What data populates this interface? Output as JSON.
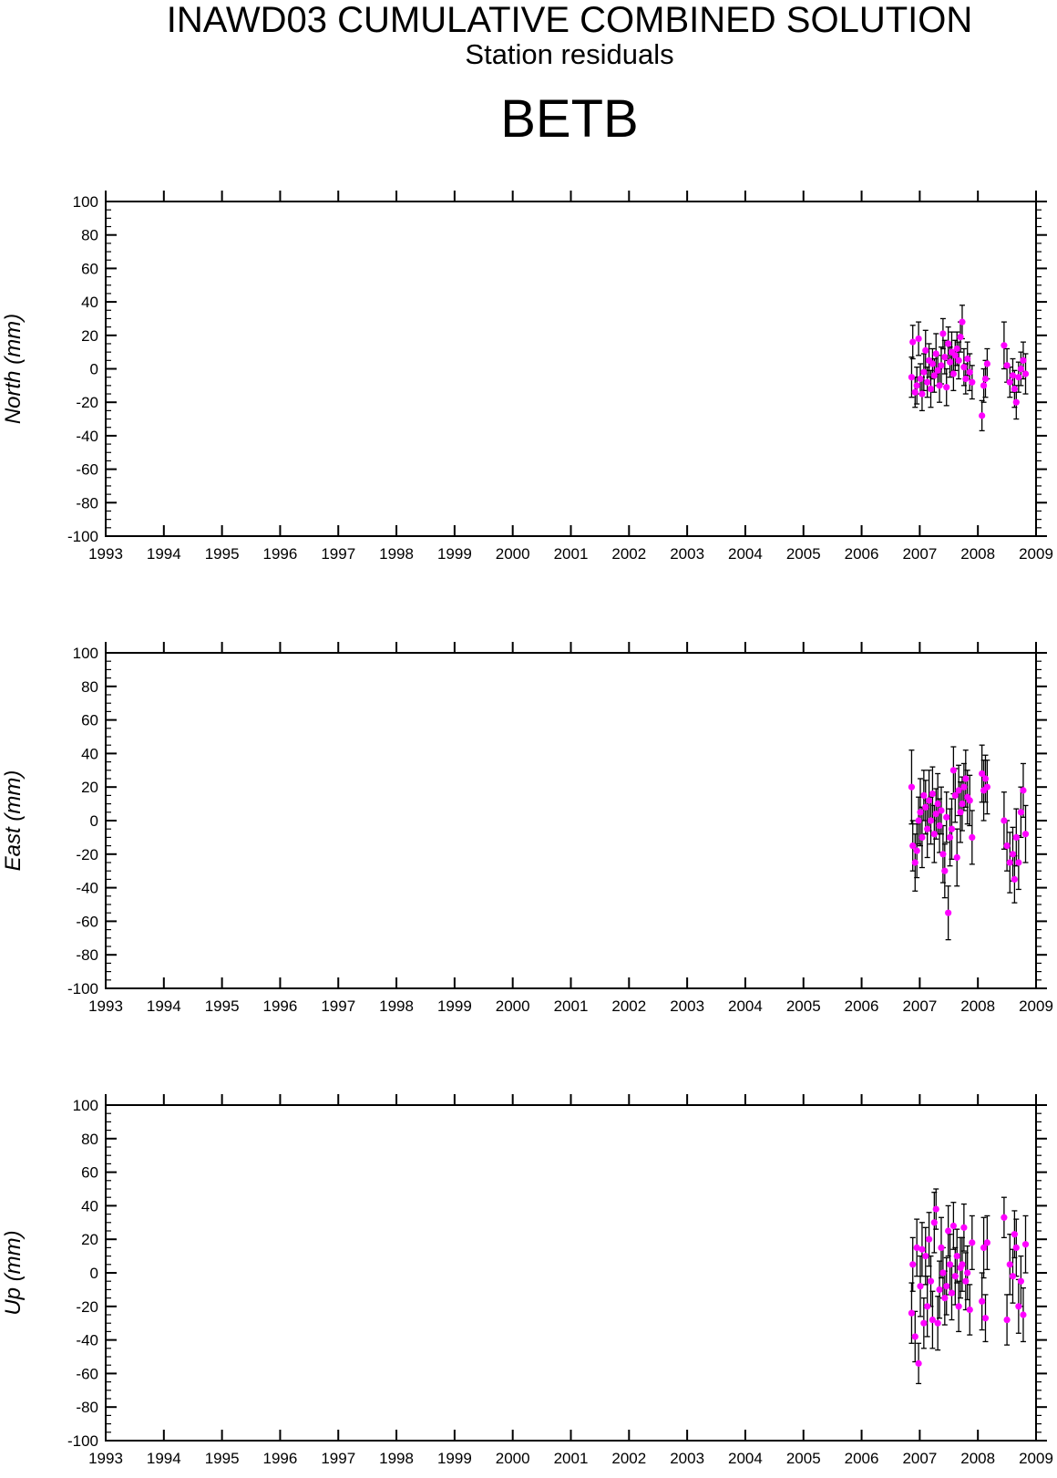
{
  "header": {
    "title": "INAWD03 CUMULATIVE COMBINED SOLUTION",
    "subtitle": "Station residuals",
    "station": "BETB"
  },
  "colors": {
    "marker": "#ff00ff",
    "errorbar": "#000000",
    "axis": "#000000"
  },
  "chart_data": [
    {
      "type": "scatter",
      "ylabel": "North (mm)",
      "xlim": [
        1993,
        2009
      ],
      "ylim": [
        -100,
        100
      ],
      "x_ticks": [
        1993,
        1994,
        1995,
        1996,
        1997,
        1998,
        1999,
        2000,
        2001,
        2002,
        2003,
        2004,
        2005,
        2006,
        2007,
        2008,
        2009
      ],
      "y_ticks": [
        -100,
        -80,
        -60,
        -40,
        -20,
        0,
        20,
        40,
        60,
        80,
        100
      ],
      "grid": false,
      "series": [
        {
          "x": [
            2006.86,
            2006.88,
            2006.92,
            2006.95,
            2006.98,
            2007.01,
            2007.04,
            2007.07,
            2007.1,
            2007.13,
            2007.16,
            2007.19,
            2007.22,
            2007.25,
            2007.28,
            2007.31,
            2007.34,
            2007.37,
            2007.4,
            2007.43,
            2007.46,
            2007.49,
            2007.52,
            2007.55,
            2007.58,
            2007.61,
            2007.64,
            2007.67,
            2007.7,
            2007.73,
            2007.76,
            2007.79,
            2007.82,
            2007.86,
            2007.9,
            2008.07,
            2008.1,
            2008.13,
            2008.16,
            2008.45,
            2008.5,
            2008.55,
            2008.6,
            2008.63,
            2008.66,
            2008.7,
            2008.74,
            2008.78,
            2008.82
          ],
          "y": [
            -5,
            16,
            -14,
            -10,
            18,
            -6,
            -15,
            -2,
            11,
            -8,
            5,
            -12,
            3,
            -4,
            9,
            -1,
            -10,
            2,
            21,
            7,
            -11,
            15,
            4,
            10,
            -3,
            8,
            12,
            5,
            19,
            28,
            1,
            -6,
            6,
            -2,
            -8,
            -28,
            -10,
            -6,
            3,
            14,
            2,
            -8,
            -4,
            -12,
            -20,
            -5,
            0,
            5,
            -3
          ],
          "err": [
            12,
            10,
            9,
            11,
            10,
            9,
            10,
            11,
            12,
            9,
            10,
            11,
            9,
            10,
            12,
            9,
            10,
            11,
            9,
            10,
            11,
            10,
            9,
            12,
            10,
            9,
            10,
            11,
            9,
            10,
            11,
            9,
            10,
            11,
            10,
            9,
            10,
            11,
            9,
            14,
            10,
            9,
            10,
            11,
            10,
            9,
            10,
            11,
            12
          ]
        }
      ]
    },
    {
      "type": "scatter",
      "ylabel": "East (mm)",
      "xlim": [
        1993,
        2009
      ],
      "ylim": [
        -100,
        100
      ],
      "x_ticks": [
        1993,
        1994,
        1995,
        1996,
        1997,
        1998,
        1999,
        2000,
        2001,
        2002,
        2003,
        2004,
        2005,
        2006,
        2007,
        2008,
        2009
      ],
      "y_ticks": [
        -100,
        -80,
        -60,
        -40,
        -20,
        0,
        20,
        40,
        60,
        80,
        100
      ],
      "grid": false,
      "series": [
        {
          "x": [
            2006.86,
            2006.88,
            2006.92,
            2006.95,
            2006.98,
            2007.01,
            2007.04,
            2007.07,
            2007.1,
            2007.13,
            2007.16,
            2007.19,
            2007.22,
            2007.25,
            2007.28,
            2007.31,
            2007.34,
            2007.37,
            2007.4,
            2007.43,
            2007.46,
            2007.49,
            2007.52,
            2007.55,
            2007.58,
            2007.61,
            2007.64,
            2007.67,
            2007.7,
            2007.73,
            2007.76,
            2007.79,
            2007.82,
            2007.86,
            2007.9,
            2008.07,
            2008.1,
            2008.13,
            2008.16,
            2008.45,
            2008.5,
            2008.55,
            2008.6,
            2008.63,
            2008.66,
            2008.7,
            2008.74,
            2008.78,
            2008.82
          ],
          "y": [
            20,
            -15,
            -25,
            -18,
            0,
            5,
            -10,
            15,
            8,
            -5,
            12,
            0,
            16,
            -8,
            4,
            10,
            -3,
            6,
            -20,
            -30,
            2,
            -55,
            -10,
            -5,
            30,
            15,
            -22,
            18,
            5,
            10,
            20,
            25,
            14,
            12,
            -10,
            28,
            18,
            25,
            20,
            0,
            -15,
            -25,
            -20,
            -35,
            -10,
            -25,
            5,
            18,
            -8
          ],
          "err": [
            22,
            15,
            17,
            16,
            14,
            20,
            18,
            15,
            16,
            17,
            18,
            14,
            16,
            17,
            15,
            18,
            16,
            14,
            17,
            16,
            15,
            16,
            17,
            18,
            14,
            16,
            17,
            15,
            18,
            16,
            14,
            17,
            16,
            15,
            16,
            17,
            18,
            14,
            16,
            17,
            15,
            18,
            16,
            14,
            17,
            16,
            15,
            16,
            17
          ]
        }
      ]
    },
    {
      "type": "scatter",
      "ylabel": "Up (mm)",
      "xlim": [
        1993,
        2009
      ],
      "ylim": [
        -100,
        100
      ],
      "x_ticks": [
        1993,
        1994,
        1995,
        1996,
        1997,
        1998,
        1999,
        2000,
        2001,
        2002,
        2003,
        2004,
        2005,
        2006,
        2007,
        2008,
        2009
      ],
      "y_ticks": [
        -100,
        -80,
        -60,
        -40,
        -20,
        0,
        20,
        40,
        60,
        80,
        100
      ],
      "grid": false,
      "series": [
        {
          "x": [
            2006.86,
            2006.88,
            2006.92,
            2006.95,
            2006.98,
            2007.01,
            2007.04,
            2007.07,
            2007.1,
            2007.13,
            2007.16,
            2007.19,
            2007.22,
            2007.25,
            2007.28,
            2007.31,
            2007.34,
            2007.37,
            2007.4,
            2007.43,
            2007.46,
            2007.49,
            2007.52,
            2007.55,
            2007.58,
            2007.61,
            2007.64,
            2007.67,
            2007.7,
            2007.73,
            2007.76,
            2007.79,
            2007.82,
            2007.86,
            2007.9,
            2008.07,
            2008.1,
            2008.13,
            2008.16,
            2008.45,
            2008.5,
            2008.55,
            2008.6,
            2008.63,
            2008.66,
            2008.7,
            2008.74,
            2008.78,
            2008.82
          ],
          "y": [
            -24,
            5,
            -38,
            15,
            -54,
            -8,
            14,
            -30,
            10,
            -20,
            20,
            -5,
            -28,
            30,
            38,
            -30,
            -10,
            15,
            0,
            -15,
            -8,
            25,
            5,
            -12,
            28,
            -2,
            10,
            -20,
            3,
            5,
            27,
            -5,
            0,
            -22,
            18,
            -17,
            15,
            -27,
            18,
            33,
            -28,
            5,
            -2,
            23,
            15,
            -20,
            -5,
            -25,
            17
          ],
          "err": [
            18,
            16,
            15,
            17,
            12,
            18,
            16,
            15,
            17,
            18,
            16,
            15,
            17,
            18,
            12,
            16,
            17,
            18,
            15,
            16,
            17,
            15,
            18,
            16,
            14,
            17,
            16,
            15,
            18,
            16,
            14,
            17,
            16,
            15,
            16,
            17,
            18,
            14,
            16,
            12,
            15,
            18,
            16,
            14,
            17,
            16,
            15,
            16,
            17
          ]
        }
      ]
    }
  ]
}
